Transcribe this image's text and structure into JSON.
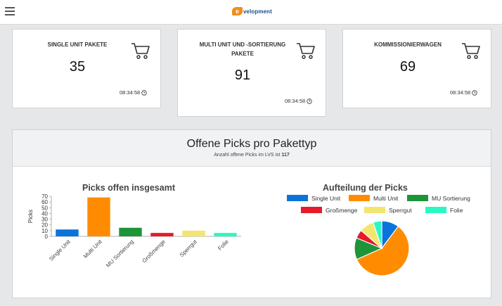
{
  "header": {
    "logo_mark": "e",
    "logo_text": "velopment"
  },
  "cards": [
    {
      "title": "SINGLE UNIT PAKETE",
      "value": "35",
      "time": "08:34:58"
    },
    {
      "title": "MULTI UNIT UND -SORTIERUNG PAKETE",
      "value": "91",
      "time": "08:34:58"
    },
    {
      "title": "KOMMISSIONIERWAGEN",
      "value": "69",
      "time": "08:34:58"
    }
  ],
  "panel": {
    "title": "Offene Picks pro Pakettyp",
    "subtitle_prefix": "Anzahl offene Picks im LVS ist",
    "subtitle_total": "117"
  },
  "colors": {
    "single": "#0a74da",
    "multi": "#ff8c00",
    "mu_sort": "#1c9438",
    "gross": "#e61a2b",
    "sperr": "#f4e56f",
    "folie": "#2bf7c4"
  },
  "chart_data": [
    {
      "type": "bar",
      "title": "Picks offen insgesamt",
      "ylabel": "Picks",
      "categories": [
        "Single Unit",
        "Multi Unit",
        "MU Sortierung",
        "Großmenge",
        "Sperrgut",
        "Folie"
      ],
      "values": [
        12,
        68,
        15,
        6,
        10,
        6
      ],
      "ylim": [
        0,
        70
      ],
      "yticks": [
        0,
        10,
        20,
        30,
        40,
        50,
        60,
        70
      ],
      "colors": [
        "#0a74da",
        "#ff8c00",
        "#1c9438",
        "#e61a2b",
        "#f4e56f",
        "#2bf7c4"
      ]
    },
    {
      "type": "pie",
      "title": "Aufteilung der Picks",
      "categories": [
        "Single Unit",
        "Multi Unit",
        "MU Sortierung",
        "Großmenge",
        "Sperrgut",
        "Folie"
      ],
      "values": [
        12,
        68,
        15,
        6,
        10,
        6
      ],
      "colors": [
        "#0a74da",
        "#ff8c00",
        "#1c9438",
        "#e61a2b",
        "#f4e56f",
        "#2bf7c4"
      ],
      "legend_placement": "top"
    }
  ]
}
